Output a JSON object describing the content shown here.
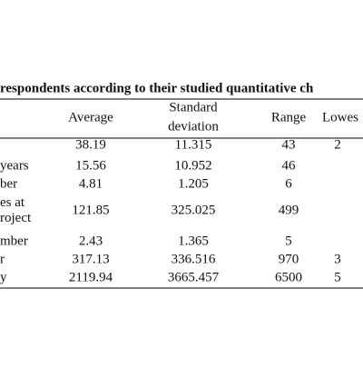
{
  "title": "respondents according to their studied quantitative ch",
  "table": {
    "columns": [
      [
        "Average"
      ],
      [
        "Standard",
        "deviation"
      ],
      [
        "Range"
      ],
      [
        "Lowes"
      ]
    ],
    "rows": [
      {
        "cells": [
          "38.19",
          "11.315",
          "43",
          "2"
        ]
      },
      {
        "label": [
          "years"
        ],
        "cells": [
          "15.56",
          "10.952",
          "46"
        ]
      },
      {
        "label": [
          "ber"
        ],
        "cells": [
          "4.81",
          "1.205",
          "6"
        ]
      },
      {
        "label": [
          "es at",
          "roject"
        ],
        "cells": [
          "121.85",
          "325.025",
          "499"
        ]
      },
      {
        "label": [
          "mber"
        ],
        "cells": [
          "2.43",
          "1.365",
          "5"
        ]
      },
      {
        "label": [
          "r"
        ],
        "cells": [
          "317.13",
          "336.516",
          "970",
          "3"
        ]
      },
      {
        "label": [
          "y"
        ],
        "cells": [
          "2119.94",
          "3665.457",
          "6500",
          "5"
        ]
      }
    ]
  }
}
